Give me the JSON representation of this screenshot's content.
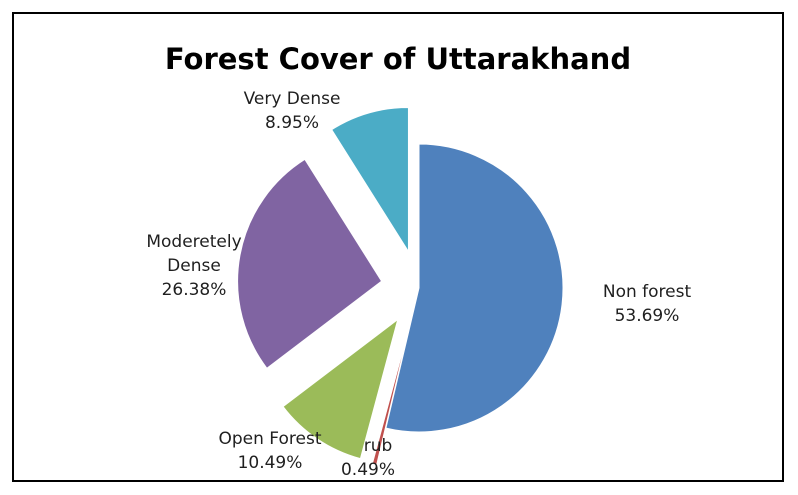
{
  "chart_data": {
    "type": "pie",
    "title": "Forest Cover of Uttarakhand",
    "slices": [
      {
        "name": "Non forest",
        "value": 53.69,
        "label_lines": [
          "Non forest",
          "53.69%"
        ],
        "color": "#4f81bd",
        "exploded": false
      },
      {
        "name": "Scrub",
        "value": 0.49,
        "label_lines": [
          "Scrub",
          "0.49%"
        ],
        "color": "#c0504d",
        "exploded": true
      },
      {
        "name": "Open Forest",
        "value": 10.49,
        "label_lines": [
          "Open Forest",
          "10.49%"
        ],
        "color": "#9bbb59",
        "exploded": true
      },
      {
        "name": "Moderetely Dense",
        "value": 26.38,
        "label_lines": [
          "Moderetely",
          "Dense",
          "26.38%"
        ],
        "color": "#8064a2",
        "exploded": true
      },
      {
        "name": "Very Dense",
        "value": 8.95,
        "label_lines": [
          "Very Dense",
          "8.95%"
        ],
        "color": "#4bacc6",
        "exploded": true
      }
    ],
    "legend": "none",
    "data_labels": "outside"
  }
}
